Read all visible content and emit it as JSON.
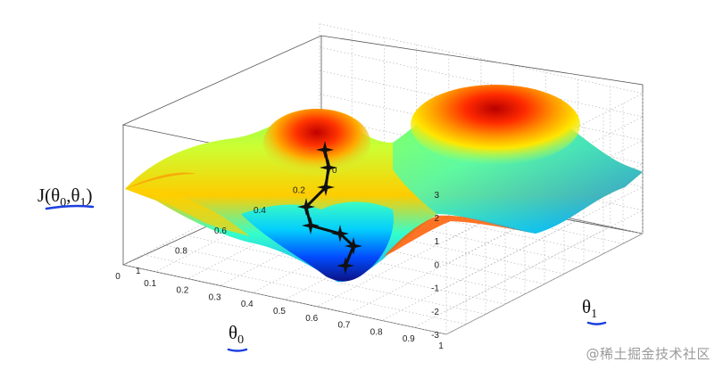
{
  "chart_data": {
    "type": "surface3d",
    "title": "",
    "zlabel": "J(θ0,θ1)",
    "xlabel": "θ0",
    "ylabel": "θ1",
    "xlim": [
      0,
      1
    ],
    "ylim": [
      0,
      1
    ],
    "zlim": [
      -3,
      3
    ],
    "x_ticks": [
      "1",
      "0.9",
      "0.8",
      "0.7",
      "0.6",
      "0.5",
      "0.4",
      "0.3",
      "0.2",
      "0.1",
      "0"
    ],
    "y_ticks": [
      "0",
      "0.2",
      "0.4",
      "0.6",
      "0.8",
      "1"
    ],
    "z_ticks": [
      "3",
      "2",
      "1",
      "0",
      "-1",
      "-2",
      "-3"
    ],
    "colormap": "jet",
    "grid": true,
    "descent_path": [
      {
        "theta0": 0.55,
        "theta1": 0.05,
        "J": 1.9
      },
      {
        "theta0": 0.55,
        "theta1": 0.09,
        "J": 0.9
      },
      {
        "theta0": 0.55,
        "theta1": 0.13,
        "J": 0.1
      },
      {
        "theta0": 0.55,
        "theta1": 0.17,
        "J": -0.8
      },
      {
        "theta0": 0.5,
        "theta1": 0.21,
        "J": -1.5
      },
      {
        "theta0": 0.45,
        "theta1": 0.25,
        "J": -1.9
      },
      {
        "theta0": 0.38,
        "theta1": 0.27,
        "J": -2.3
      },
      {
        "theta0": 0.3,
        "theta1": 0.28,
        "J": -2.6
      }
    ]
  },
  "watermark": "@稀土掘金技术社区",
  "colors": {
    "axis_label_underline": "#1a3fe0",
    "path": "#111111"
  }
}
